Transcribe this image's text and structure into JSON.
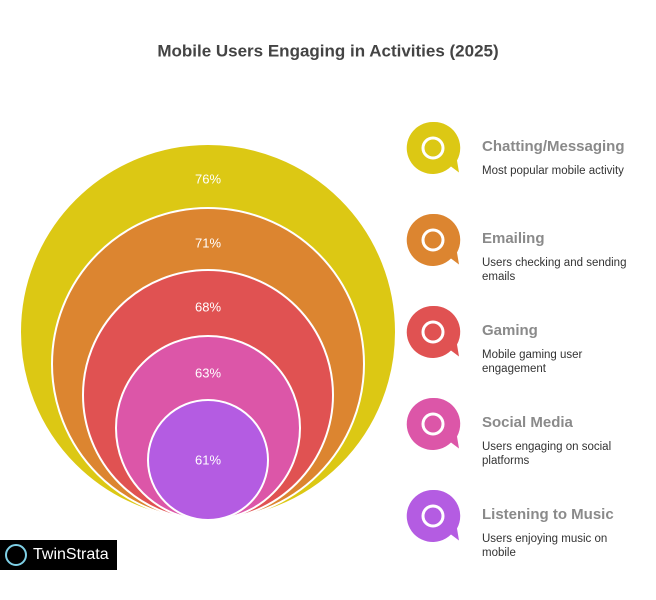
{
  "chart_data": {
    "type": "nested-circles",
    "title": "Mobile Users Engaging in Activities (2025)",
    "categories": [
      "Chatting/Messaging",
      "Emailing",
      "Gaming",
      "Social Media",
      "Listening to Music"
    ],
    "descriptions": [
      "Most popular mobile activity",
      "Users checking and sending emails",
      "Mobile gaming user engagement",
      "Users engaging on social platforms",
      "Users enjoying music on mobile"
    ],
    "values": [
      76,
      71,
      68,
      63,
      61
    ],
    "value_labels": [
      "76%",
      "71%",
      "68%",
      "63%",
      "61%"
    ],
    "colors": [
      "#dcc814",
      "#dc8530",
      "#e05252",
      "#dc56a8",
      "#b45ce2"
    ]
  },
  "watermark": "TwinStrata"
}
